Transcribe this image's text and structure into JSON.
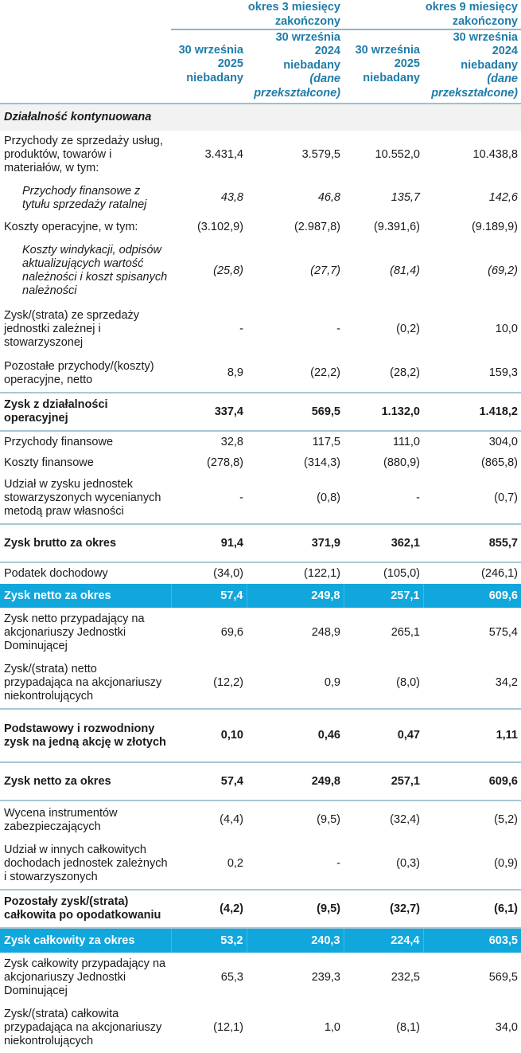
{
  "header": {
    "group_3m": "okres 3 miesięcy zakończony",
    "group_9m": "okres 9 miesięcy zakończony",
    "columns": [
      {
        "line1": "30 września",
        "line2": "2025",
        "line3": "niebadany",
        "line4": ""
      },
      {
        "line1": "30 września",
        "line2": "2024",
        "line3": "niebadany",
        "line4": "(dane przekształcone)"
      },
      {
        "line1": "30 września",
        "line2": "2025",
        "line3": "niebadany",
        "line4": ""
      },
      {
        "line1": "30 września",
        "line2": "2024",
        "line3": "niebadany",
        "line4": "(dane przekształcone)"
      }
    ]
  },
  "section": {
    "label": "Działalność kontynuowana"
  },
  "rows": [
    {
      "label": "Przychody ze sprzedaży usług, produktów, towarów i materiałów, w tym:",
      "values": [
        "3.431,4",
        "3.579,5",
        "10.552,0",
        "10.438,8"
      ],
      "style": "normal"
    },
    {
      "label": "Przychody finansowe z tytułu sprzedaży ratalnej",
      "values": [
        "43,8",
        "46,8",
        "135,7",
        "142,6"
      ],
      "style": "italic"
    },
    {
      "label": "Koszty operacyjne, w tym:",
      "values": [
        "(3.102,9)",
        "(2.987,8)",
        "(9.391,6)",
        "(9.189,9)"
      ],
      "style": "normal"
    },
    {
      "label": "Koszty windykacji, odpisów aktualizujących wartość należności i koszt spisanych należności",
      "values": [
        "(25,8)",
        "(27,7)",
        "(81,4)",
        "(69,2)"
      ],
      "style": "italic"
    },
    {
      "label": "Zysk/(strata) ze sprzedaży jednostki zależnej i stowarzyszonej",
      "values": [
        "-",
        "-",
        "(0,2)",
        "10,0"
      ],
      "style": "normal"
    },
    {
      "label": "Pozostałe przychody/(koszty) operacyjne, netto",
      "values": [
        "8,9",
        "(22,2)",
        "(28,2)",
        "159,3"
      ],
      "style": "normal"
    },
    {
      "label": "Zysk z działalności operacyjnej",
      "values": [
        "337,4",
        "569,5",
        "1.132,0",
        "1.418,2"
      ],
      "style": "bold"
    },
    {
      "label": "Przychody finansowe",
      "values": [
        "32,8",
        "117,5",
        "111,0",
        "304,0"
      ],
      "style": "normal"
    },
    {
      "label": "Koszty finansowe",
      "values": [
        "(278,8)",
        "(314,3)",
        "(880,9)",
        "(865,8)"
      ],
      "style": "normal"
    },
    {
      "label": "Udział w zysku jednostek stowarzyszonych wycenianych metodą praw własności",
      "values": [
        "-",
        "(0,8)",
        "-",
        "(0,7)"
      ],
      "style": "normal"
    },
    {
      "label": "Zysk brutto za okres",
      "values": [
        "91,4",
        "371,9",
        "362,1",
        "855,7"
      ],
      "style": "bold"
    },
    {
      "label": "Podatek dochodowy",
      "values": [
        "(34,0)",
        "(122,1)",
        "(105,0)",
        "(246,1)"
      ],
      "style": "normal"
    },
    {
      "label": "Zysk netto za okres",
      "values": [
        "57,4",
        "249,8",
        "257,1",
        "609,6"
      ],
      "style": "blue"
    },
    {
      "label": "Zysk netto przypadający na akcjonariuszy Jednostki Dominującej",
      "values": [
        "69,6",
        "248,9",
        "265,1",
        "575,4"
      ],
      "style": "normal"
    },
    {
      "label": "Zysk/(strata) netto przypadająca na akcjonariuszy niekontrolujących",
      "values": [
        "(12,2)",
        "0,9",
        "(8,0)",
        "34,2"
      ],
      "style": "normal"
    },
    {
      "label": "Podstawowy i rozwodniony zysk na jedną akcję w złotych",
      "values": [
        "0,10",
        "0,46",
        "0,47",
        "1,11"
      ],
      "style": "bold"
    },
    {
      "label": "Zysk netto za okres",
      "values": [
        "57,4",
        "249,8",
        "257,1",
        "609,6"
      ],
      "style": "bold"
    },
    {
      "label": "Wycena instrumentów zabezpieczających",
      "values": [
        "(4,4)",
        "(9,5)",
        "(32,4)",
        "(5,2)"
      ],
      "style": "normal"
    },
    {
      "label": "Udział w innych całkowitych dochodach jednostek zależnych i stowarzyszonych",
      "values": [
        "0,2",
        "-",
        "(0,3)",
        "(0,9)"
      ],
      "style": "normal"
    },
    {
      "label": "Pozostały zysk/(strata) całkowita po opodatkowaniu",
      "values": [
        "(4,2)",
        "(9,5)",
        "(32,7)",
        "(6,1)"
      ],
      "style": "bold"
    },
    {
      "label": "Zysk całkowity za okres",
      "values": [
        "53,2",
        "240,3",
        "224,4",
        "603,5"
      ],
      "style": "blue"
    },
    {
      "label": "Zysk całkowity przypadający na akcjonariuszy Jednostki Dominującej",
      "values": [
        "65,3",
        "239,3",
        "232,5",
        "569,5"
      ],
      "style": "normal"
    },
    {
      "label": "Zysk/(strata) całkowita przypadająca na akcjonariuszy niekontrolujących",
      "values": [
        "(12,1)",
        "1,0",
        "(8,1)",
        "34,0"
      ],
      "style": "normal"
    }
  ],
  "colors": {
    "header_text": "#1f7ca8",
    "highlight_row": "#11a7dd",
    "section_bg": "#f2f2f2",
    "rule": "#a9c6d4"
  }
}
